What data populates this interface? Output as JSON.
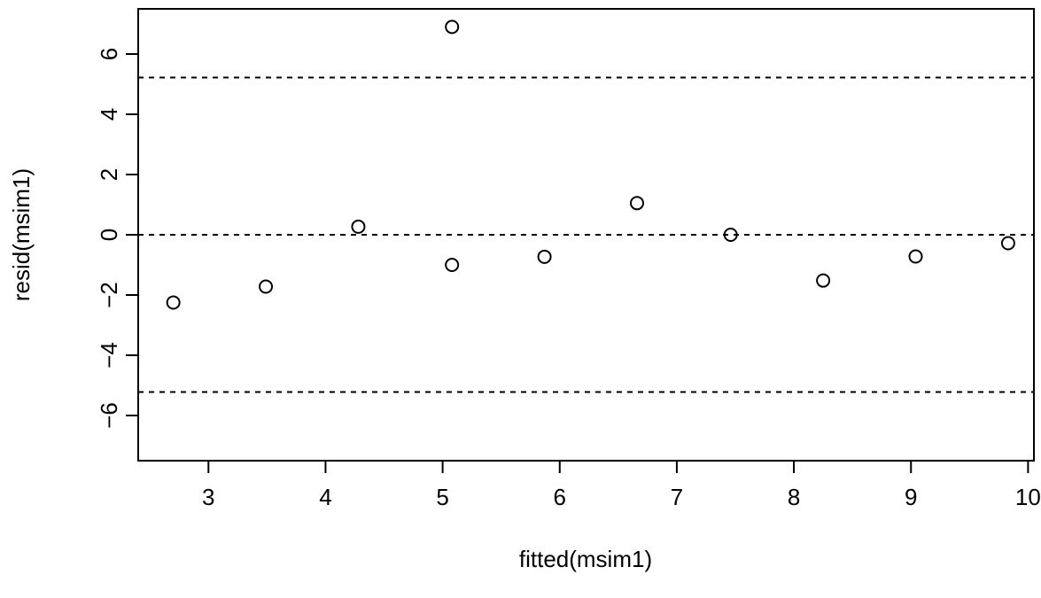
{
  "chart_data": {
    "type": "scatter",
    "title": "",
    "xlabel": "fitted(msim1)",
    "ylabel": "resid(msim1)",
    "xlim": [
      2.4,
      10.05
    ],
    "ylim": [
      -7.5,
      7.5
    ],
    "xticks": [
      3,
      4,
      5,
      6,
      7,
      8,
      9,
      10
    ],
    "yticks": [
      -6,
      -4,
      -2,
      0,
      2,
      4,
      6
    ],
    "ytick_labels": [
      "−6",
      "−4",
      "−2",
      "0",
      "2",
      "4",
      "6"
    ],
    "reference_lines": [
      5.22,
      0,
      -5.22
    ],
    "reference_line_style": "dashed",
    "grid": false,
    "marker": "open-circle",
    "points": [
      {
        "x": 2.7,
        "y": -2.25
      },
      {
        "x": 3.49,
        "y": -1.72
      },
      {
        "x": 4.28,
        "y": 0.27
      },
      {
        "x": 5.08,
        "y": 6.9
      },
      {
        "x": 5.08,
        "y": -1.0
      },
      {
        "x": 5.87,
        "y": -0.73
      },
      {
        "x": 6.66,
        "y": 1.05
      },
      {
        "x": 7.46,
        "y": 0.0
      },
      {
        "x": 8.25,
        "y": -1.52
      },
      {
        "x": 9.04,
        "y": -0.72
      },
      {
        "x": 9.83,
        "y": -0.28
      }
    ]
  }
}
